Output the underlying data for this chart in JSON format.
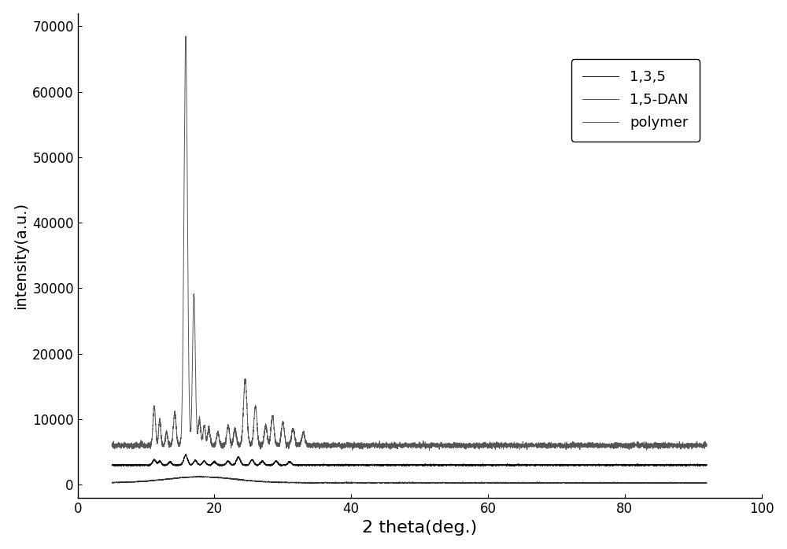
{
  "title": "",
  "xlabel": "2 theta(deg.)",
  "ylabel": "intensity(a.u.)",
  "xlim": [
    0,
    100
  ],
  "ylim": [
    -2000,
    72000
  ],
  "yticks": [
    0,
    10000,
    20000,
    30000,
    40000,
    50000,
    60000,
    70000
  ],
  "xticks": [
    0,
    20,
    40,
    60,
    80,
    100
  ],
  "legend_labels": [
    "1,3,5",
    "1,5-DAN",
    "polymer"
  ],
  "color_135": "#111111",
  "color_dan": "#555555",
  "color_polymer": "#333333",
  "background_color": "#ffffff",
  "figsize": [
    10.0,
    6.98
  ],
  "dpi": 100
}
